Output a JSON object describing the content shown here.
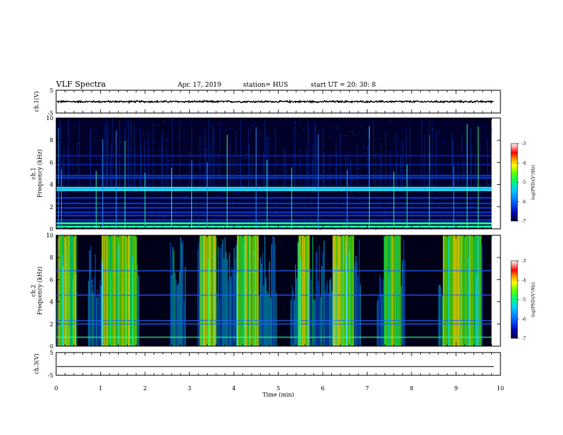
{
  "header": {
    "title": "VLF Spectra",
    "date": "Apr. 17, 2019",
    "station": "station= HUS",
    "start": "start  UT  =   20: 30: 8"
  },
  "chart_data": [
    {
      "type": "line",
      "name": "ch1-waveform",
      "ylabel": "ch.1(V)",
      "ylim": [
        -5,
        5
      ],
      "yticks": [
        "5",
        "-5"
      ],
      "xlim": [
        0,
        10
      ],
      "level": 0,
      "noise_amplitude": 0.35
    },
    {
      "type": "heatmap",
      "name": "ch1-spectrogram",
      "ylabel": "ch.1\nFrequency (kHz)",
      "ylim": [
        0,
        10
      ],
      "yticks": [
        "0",
        "2",
        "4",
        "6",
        "8",
        "10"
      ],
      "xlim": [
        0,
        9.8
      ],
      "bands_khz": [
        0.2,
        0.5,
        0.8,
        1.2,
        1.5,
        1.9,
        2.3,
        2.8,
        3.5,
        3.7,
        4.6,
        4.8,
        5.8,
        6.6
      ],
      "bright_bands_khz": [
        0.3,
        3.5
      ],
      "impulses_min": [
        0.05,
        0.12,
        0.9,
        1.05,
        1.35,
        1.55,
        2.0,
        2.6,
        3.05,
        3.4,
        3.85,
        4.5,
        4.75,
        5.3,
        5.9,
        6.55,
        7.05,
        7.6,
        7.9,
        8.4,
        8.95,
        9.25,
        9.5
      ]
    },
    {
      "type": "heatmap",
      "name": "ch2-spectrogram",
      "ylabel": "ch.2\nFrequency (kHz)",
      "ylim": [
        0,
        10
      ],
      "yticks": [
        "0",
        "2",
        "4",
        "6",
        "8",
        "10"
      ],
      "xlim": [
        0,
        9.8
      ],
      "bands_khz": [
        0.8,
        2.0,
        2.3,
        4.6,
        6.8
      ],
      "bright_bands_khz": [
        0.8
      ],
      "dark_intervals_min": [
        [
          0.45,
          0.7
        ],
        [
          1.85,
          2.55
        ],
        [
          2.9,
          3.15
        ],
        [
          4.95,
          5.25
        ],
        [
          6.85,
          7.2
        ],
        [
          7.85,
          8.6
        ],
        [
          9.6,
          9.8
        ]
      ],
      "busy_intervals_min": [
        [
          0.05,
          0.45
        ],
        [
          1.0,
          1.8
        ],
        [
          3.2,
          3.6
        ],
        [
          4.05,
          4.55
        ],
        [
          5.45,
          5.7
        ],
        [
          6.2,
          6.7
        ],
        [
          7.35,
          7.75
        ],
        [
          8.7,
          9.55
        ]
      ]
    },
    {
      "type": "line",
      "name": "ch3-waveform",
      "ylabel": "ch.3(V)",
      "ylim": [
        -5,
        5
      ],
      "yticks": [
        "5",
        "-5"
      ],
      "xlim": [
        0,
        10
      ],
      "level": -1.2,
      "noise_amplitude": 0
    }
  ],
  "x_axis": {
    "label": "Time  (min)",
    "range": [
      0,
      10
    ],
    "ticks": [
      "0",
      "1",
      "2",
      "3",
      "4",
      "5",
      "6",
      "7",
      "8",
      "9",
      "10"
    ]
  },
  "colorbar": {
    "label": "log(PSD)(V²/Hz)",
    "range": [
      -7,
      -3
    ],
    "ticks": [
      "-3",
      "-4",
      "-5",
      "-6",
      "-7"
    ],
    "colors": [
      "#000033",
      "#0000aa",
      "#0066ff",
      "#00ccff",
      "#00ff66",
      "#66ff00",
      "#ffff00",
      "#ff9900",
      "#ff0000",
      "#ffffff"
    ]
  }
}
